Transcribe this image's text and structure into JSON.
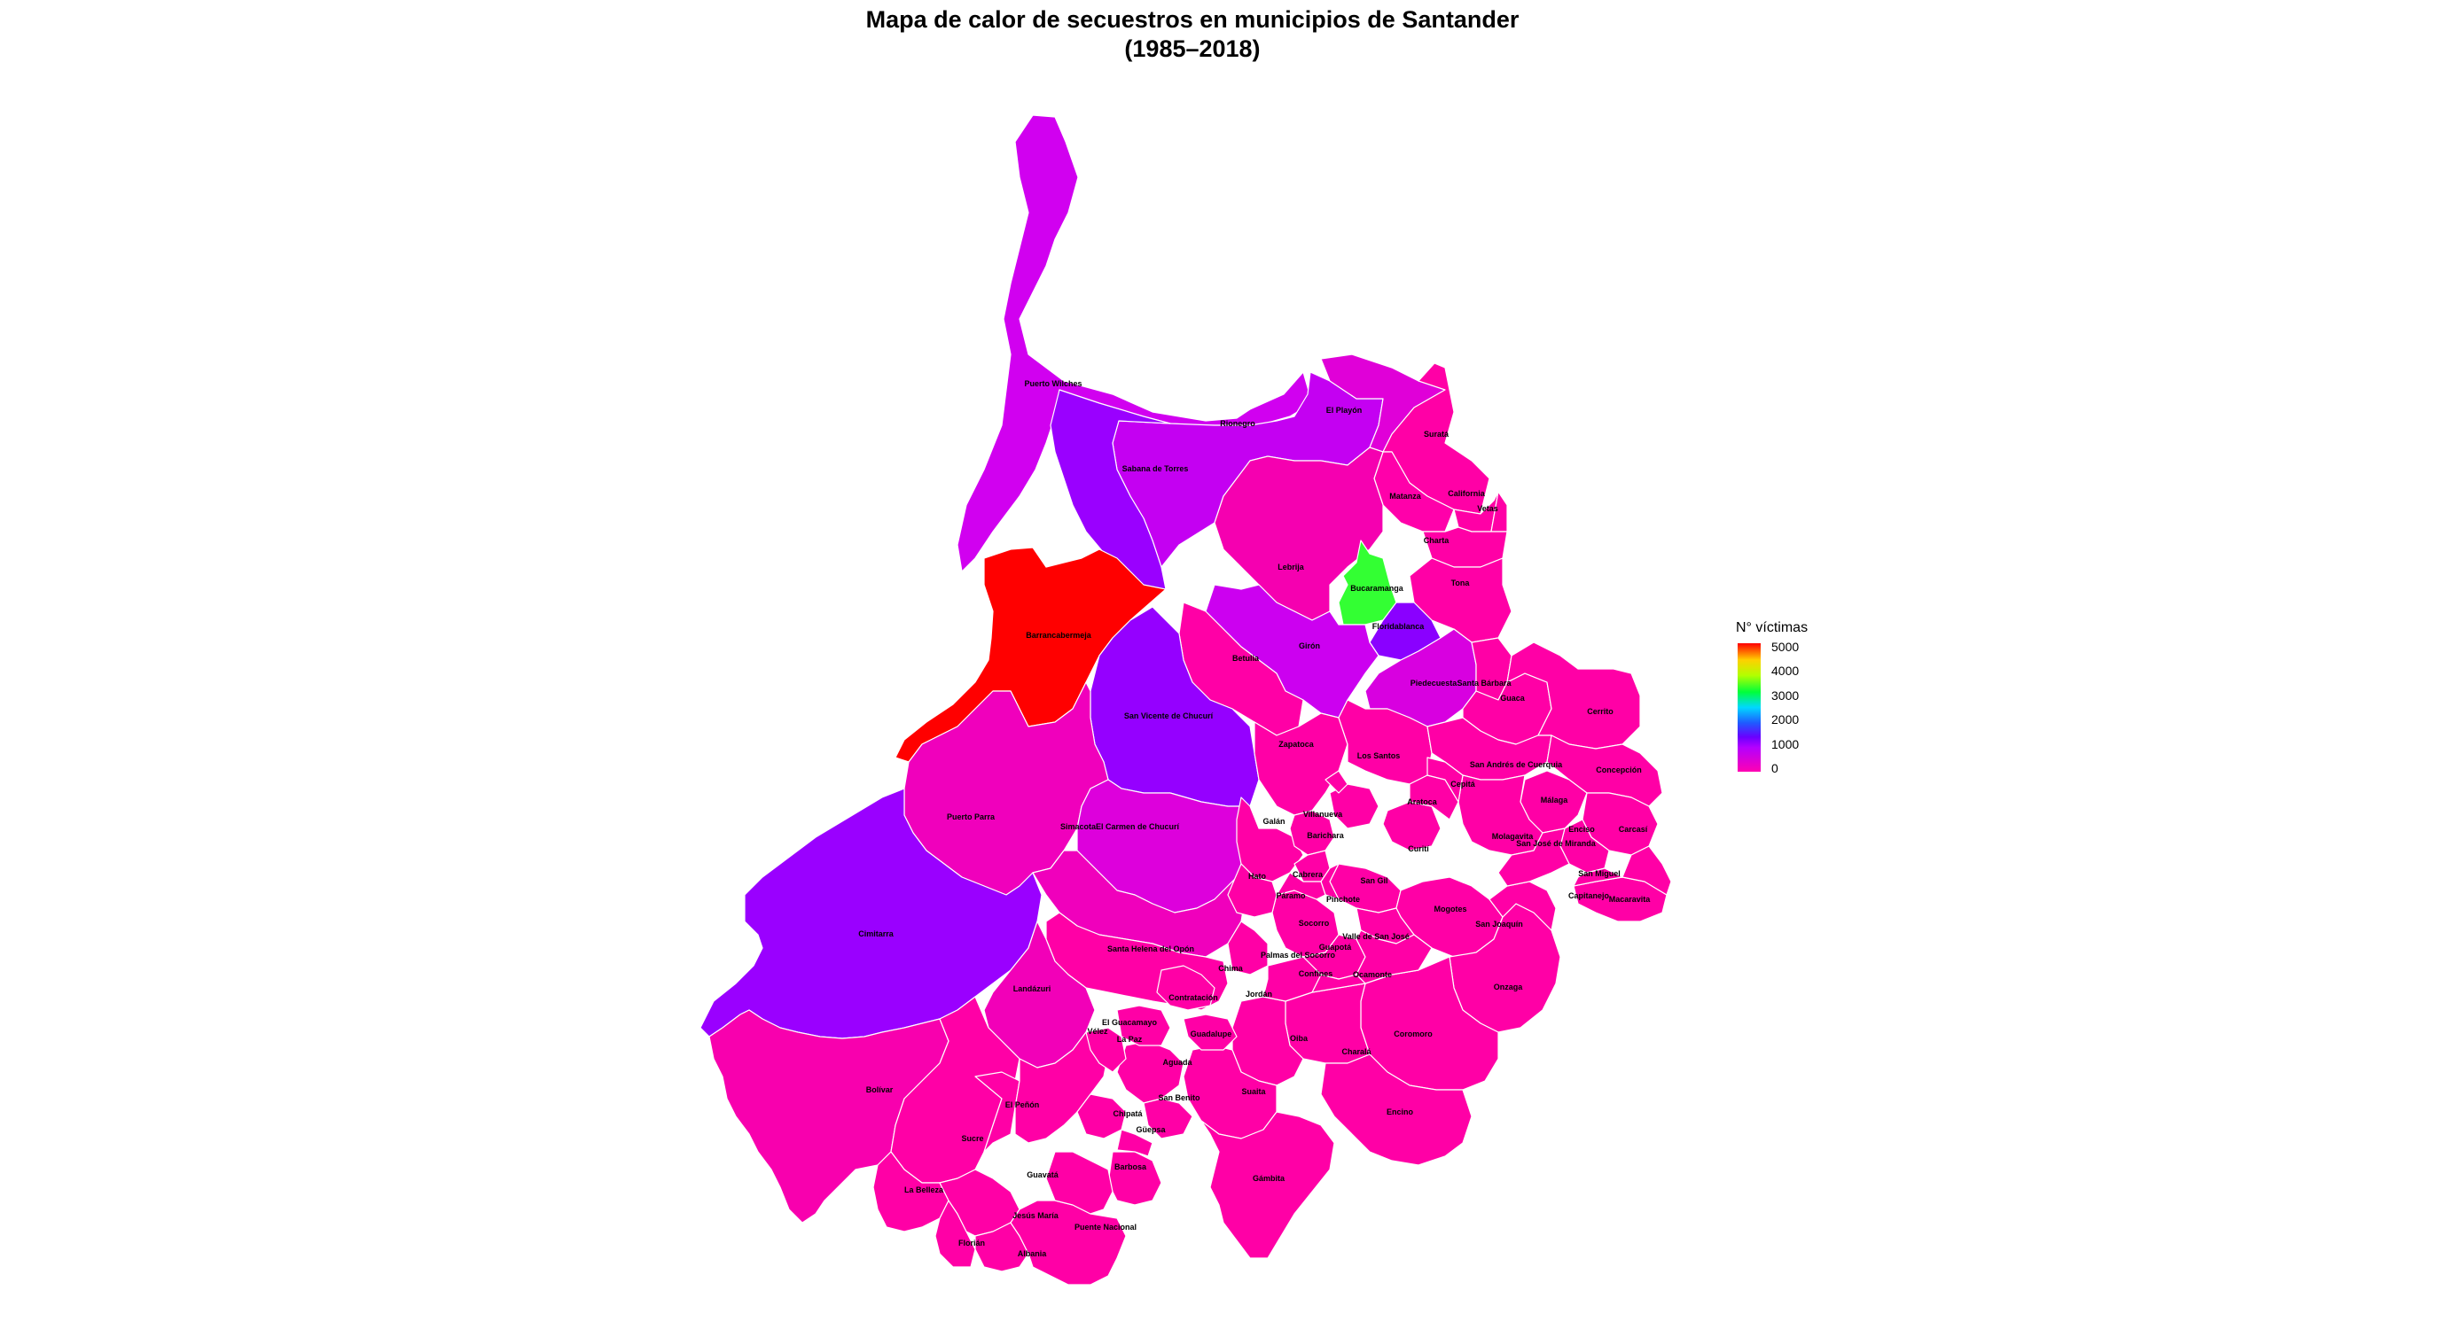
{
  "title": {
    "line1": "Mapa de calor de secuestros en municipios de Santander",
    "line2": "(1985–2018)"
  },
  "legend": {
    "title": "N° víctimas",
    "breaks": [
      "5000",
      "4000",
      "3000",
      "2000",
      "1000",
      "0"
    ]
  },
  "colors": {
    "high": "#ff0000",
    "mid": "#33ff33",
    "low_violet": "#a000ff",
    "low_violet2": "#8f00ff",
    "magenta": "#d400f2",
    "zero": "#ff00a6"
  },
  "municipalities": [
    {
      "name": "Puerto Wilches",
      "fill": "#d100f0"
    },
    {
      "name": "Rionegro",
      "fill": "#c400f2"
    },
    {
      "name": "El Playón",
      "fill": "#e000d8"
    },
    {
      "name": "Suratá",
      "fill": "#ff00a6"
    },
    {
      "name": "Sabana de Torres",
      "fill": "#9a00ff"
    },
    {
      "name": "Matanza",
      "fill": "#ff00aa"
    },
    {
      "name": "California",
      "fill": "#ff00a6"
    },
    {
      "name": "Vetas",
      "fill": "#ff00a6"
    },
    {
      "name": "Charta",
      "fill": "#ff00a6"
    },
    {
      "name": "Lebrija",
      "fill": "#f500b0"
    },
    {
      "name": "Bucaramanga",
      "fill": "#33ff33"
    },
    {
      "name": "Tona",
      "fill": "#ff00a6"
    },
    {
      "name": "Floridablanca",
      "fill": "#8a00ff"
    },
    {
      "name": "Barrancabermeja",
      "fill": "#ff0000"
    },
    {
      "name": "Girón",
      "fill": "#cc00f0"
    },
    {
      "name": "Betulia",
      "fill": "#ff00a6"
    },
    {
      "name": "Piedecuesta",
      "fill": "#d800e0"
    },
    {
      "name": "Santa Bárbara",
      "fill": "#ff00a6"
    },
    {
      "name": "Guaca",
      "fill": "#ff00a6"
    },
    {
      "name": "Cerrito",
      "fill": "#ff00a6"
    },
    {
      "name": "San Vicente de Chucurí",
      "fill": "#9500ff"
    },
    {
      "name": "Zapatoca",
      "fill": "#ff00a6"
    },
    {
      "name": "Los Santos",
      "fill": "#ff00a6"
    },
    {
      "name": "San Andrés",
      "fill": "#ff00a6"
    },
    {
      "name": "Concepción",
      "fill": "#ff00a6"
    },
    {
      "name": "Capitanejo",
      "fill": "#ff00a6"
    },
    {
      "name": "Puerto Parra",
      "fill": "#f000bc"
    },
    {
      "name": "El Carmen de Chucurí",
      "fill": "#dd00dc"
    },
    {
      "name": "Simacota",
      "fill": "#f000bc"
    },
    {
      "name": "Cimitarra",
      "fill": "#9a00ff"
    },
    {
      "name": "Santa Helena del Opón",
      "fill": "#ff00a6"
    },
    {
      "name": "Landázuri",
      "fill": "#f200b8"
    },
    {
      "name": "Bolívar",
      "fill": "#f800ae"
    },
    {
      "name": "Sucre",
      "fill": "#ff00a6"
    },
    {
      "name": "El Peñón",
      "fill": "#ff00a6"
    },
    {
      "name": "La Belleza",
      "fill": "#ff00a6"
    },
    {
      "name": "Florián",
      "fill": "#ff00a6"
    },
    {
      "name": "Jesús María",
      "fill": "#ff00a6"
    },
    {
      "name": "Albania",
      "fill": "#ff00a6"
    },
    {
      "name": "Puente Nacional",
      "fill": "#ff00a6"
    },
    {
      "name": "Vélez",
      "fill": "#ff00a6"
    },
    {
      "name": "Socorro",
      "fill": "#ff00a6"
    },
    {
      "name": "San Gil",
      "fill": "#ff00a6"
    },
    {
      "name": "Mogotes",
      "fill": "#ff00a6"
    },
    {
      "name": "Onzaga",
      "fill": "#ff00a6"
    },
    {
      "name": "Coromoro",
      "fill": "#ff00a6"
    },
    {
      "name": "Charalá",
      "fill": "#ff00a6"
    },
    {
      "name": "Encino",
      "fill": "#ff00a6"
    },
    {
      "name": "Oiba",
      "fill": "#ff00a6"
    },
    {
      "name": "Suaita",
      "fill": "#ff00a6"
    },
    {
      "name": "Gámbita",
      "fill": "#ff00a6"
    },
    {
      "name": "Barbosa",
      "fill": "#ff00a6"
    },
    {
      "name": "Guavatá",
      "fill": "#ff00a6"
    },
    {
      "name": "Aguada",
      "fill": "#ff00a6"
    },
    {
      "name": "Málaga",
      "fill": "#ff00a6"
    },
    {
      "name": "Carcasí",
      "fill": "#ff00a6"
    },
    {
      "name": "Enciso",
      "fill": "#ff00a6"
    },
    {
      "name": "San Miguel",
      "fill": "#ff00a6"
    },
    {
      "name": "Macaravita",
      "fill": "#ff00a6"
    },
    {
      "name": "San Joaquín",
      "fill": "#ff00a6"
    },
    {
      "name": "Molagavita",
      "fill": "#ff00a6"
    },
    {
      "name": "San José de Miranda",
      "fill": "#ff00a6"
    },
    {
      "name": "Galán",
      "fill": "#ff00a6"
    },
    {
      "name": "Hato",
      "fill": "#ff00a6"
    },
    {
      "name": "Palmas del Socorro",
      "fill": "#ff00a6"
    },
    {
      "name": "Chima",
      "fill": "#ff00a6"
    },
    {
      "name": "Contratación",
      "fill": "#ff00a6"
    },
    {
      "name": "Guadalupe",
      "fill": "#ff00a6"
    },
    {
      "name": "El Guacamayo",
      "fill": "#ff00a6"
    },
    {
      "name": "La Paz",
      "fill": "#ff00a6"
    },
    {
      "name": "San Benito",
      "fill": "#ff00a6"
    },
    {
      "name": "Chipatá",
      "fill": "#ff00a6"
    },
    {
      "name": "Güepsa",
      "fill": "#ff00a6"
    },
    {
      "name": "Villanueva",
      "fill": "#ff00a6"
    },
    {
      "name": "Barichara",
      "fill": "#ff00a6"
    },
    {
      "name": "Curití",
      "fill": "#ff00a6"
    },
    {
      "name": "Jordán",
      "fill": "#ff00a6"
    },
    {
      "name": "Aratoca",
      "fill": "#ff00a6"
    },
    {
      "name": "Cepitá",
      "fill": "#ff00a6"
    },
    {
      "name": "Cabrera",
      "fill": "#ff00a6"
    },
    {
      "name": "Pinchote",
      "fill": "#ff00a6"
    },
    {
      "name": "Páramo",
      "fill": "#ff00a6"
    },
    {
      "name": "Valle de San José",
      "fill": "#ff00a6"
    },
    {
      "name": "Ocamonte",
      "fill": "#ff00a6"
    },
    {
      "name": "Confines",
      "fill": "#ff00a6"
    },
    {
      "name": "Guapotá",
      "fill": "#ff00a6"
    }
  ],
  "labels": [
    {
      "key": "pw",
      "text": "Puerto Wilches"
    },
    {
      "key": "rn",
      "text": "Rionegro"
    },
    {
      "key": "ep",
      "text": "El Playón"
    },
    {
      "key": "su",
      "text": "Suratá"
    },
    {
      "key": "st",
      "text": "Sabana de Torres"
    },
    {
      "key": "ma",
      "text": "Matanza"
    },
    {
      "key": "ca",
      "text": "California"
    },
    {
      "key": "ve",
      "text": "Vetas"
    },
    {
      "key": "ch",
      "text": "Charta"
    },
    {
      "key": "le",
      "text": "Lebrija"
    },
    {
      "key": "bu",
      "text": "Bucaramanga"
    },
    {
      "key": "to",
      "text": "Tona"
    },
    {
      "key": "fl",
      "text": "Floridablanca"
    },
    {
      "key": "ba",
      "text": "Barrancabermeja"
    },
    {
      "key": "gi",
      "text": "Girón"
    },
    {
      "key": "be",
      "text": "Betulia"
    },
    {
      "key": "pi",
      "text": "Piedecuesta"
    },
    {
      "key": "sb",
      "text": "Santa Bárbara"
    },
    {
      "key": "gu",
      "text": "Guaca"
    },
    {
      "key": "ce",
      "text": "Cerrito"
    },
    {
      "key": "sv",
      "text": "San Vicente de Chucurí"
    },
    {
      "key": "za",
      "text": "Zapatoca"
    },
    {
      "key": "ls",
      "text": "Los Santos"
    },
    {
      "key": "sa",
      "text": "San Andrés de Cuerquia"
    },
    {
      "key": "co",
      "text": "Concepción"
    },
    {
      "key": "cp",
      "text": "Cepitá"
    },
    {
      "key": "ar",
      "text": "Aratoca"
    },
    {
      "key": "ml",
      "text": "Málaga"
    },
    {
      "key": "en",
      "text": "Enciso"
    },
    {
      "key": "cr",
      "text": "Carcasí"
    },
    {
      "key": "mo",
      "text": "Molagavita"
    },
    {
      "key": "sj",
      "text": "San José de Miranda"
    },
    {
      "key": "sm",
      "text": "San Miguel"
    },
    {
      "key": "cj",
      "text": "Capitanejo"
    },
    {
      "key": "mc",
      "text": "Macaravita"
    },
    {
      "key": "pp",
      "text": "Puerto Parra"
    },
    {
      "key": "ec",
      "text": "SimacotaEl Carmen de Chucurí"
    },
    {
      "key": "ga",
      "text": "Galán"
    },
    {
      "key": "vi",
      "text": "Villanueva"
    },
    {
      "key": "bc",
      "text": "Barichara"
    },
    {
      "key": "cu",
      "text": "Curití"
    },
    {
      "key": "ha",
      "text": "Hato"
    },
    {
      "key": "cb",
      "text": "Cabrera"
    },
    {
      "key": "sg",
      "text": "San Gil"
    },
    {
      "key": "pa",
      "text": "Páramo"
    },
    {
      "key": "ph",
      "text": "Pinchote"
    },
    {
      "key": "mg",
      "text": "Mogotes"
    },
    {
      "key": "ci",
      "text": "Cimitarra"
    },
    {
      "key": "sc",
      "text": "Socorro"
    },
    {
      "key": "sq",
      "text": "San Joaquín"
    },
    {
      "key": "vs",
      "text": "Valle de San José"
    },
    {
      "key": "sh",
      "text": "Santa Helena del Opón"
    },
    {
      "key": "ps",
      "text": "Palmas del Socorro"
    },
    {
      "key": "gp",
      "text": "Guapotá"
    },
    {
      "key": "cm",
      "text": "Chima"
    },
    {
      "key": "cf",
      "text": "Confines"
    },
    {
      "key": "oc",
      "text": "Ocamonte"
    },
    {
      "key": "on",
      "text": "Onzaga"
    },
    {
      "key": "la",
      "text": "Landázuri"
    },
    {
      "key": "cn",
      "text": "Contratación"
    },
    {
      "key": "jo",
      "text": "Jordán"
    },
    {
      "key": "gc",
      "text": "El Guacamayo"
    },
    {
      "key": "cro",
      "text": "Coromoro"
    },
    {
      "key": "vz",
      "text": "Vélez"
    },
    {
      "key": "lp",
      "text": "La Paz"
    },
    {
      "key": "gd",
      "text": "Guadalupe"
    },
    {
      "key": "oi",
      "text": "Oiba"
    },
    {
      "key": "chl",
      "text": "Charalá"
    },
    {
      "key": "ag",
      "text": "Aguada"
    },
    {
      "key": "bo",
      "text": "Bolívar"
    },
    {
      "key": "sbn",
      "text": "San Benito"
    },
    {
      "key": "sui",
      "text": "Suaita"
    },
    {
      "key": "epe",
      "text": "El Peñón"
    },
    {
      "key": "cht",
      "text": "Chipatá"
    },
    {
      "key": "gue",
      "text": "Güepsa"
    },
    {
      "key": "enc",
      "text": "Encino"
    },
    {
      "key": "suc",
      "text": "Sucre"
    },
    {
      "key": "bar",
      "text": "Barbosa"
    },
    {
      "key": "gva",
      "text": "Guavatá"
    },
    {
      "key": "gam",
      "text": "Gámbita"
    },
    {
      "key": "lb",
      "text": "La Belleza"
    },
    {
      "key": "jm",
      "text": "Jesús María"
    },
    {
      "key": "pn",
      "text": "Puente Nacional"
    },
    {
      "key": "fn",
      "text": "Florián"
    },
    {
      "key": "al",
      "text": "Albania"
    }
  ]
}
